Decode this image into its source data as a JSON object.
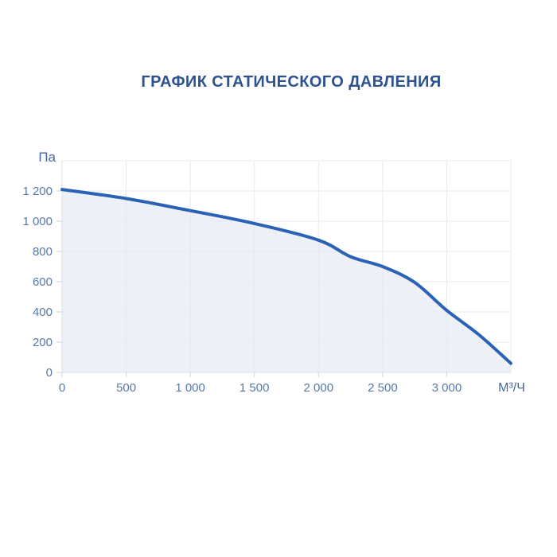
{
  "colors": {
    "background": "#ffffff",
    "title": "#2d5290",
    "tick_label": "#5579a8",
    "unit_label": "#44699b",
    "curve": "#2b62b5",
    "area_fill": "#edf1f7",
    "gridline": "#e6eaf0",
    "axis_line": "#d9dfe7",
    "tick_mark": "#c9d3df"
  },
  "chart_data": {
    "type": "area",
    "title": "ГРАФИК СТАТИЧЕСКОГО ДАВЛЕНИЯ",
    "xlabel": "М³/Ч",
    "ylabel": "Па",
    "xlim": [
      0,
      3500
    ],
    "ylim": [
      0,
      1400
    ],
    "x_tick_step": 500,
    "y_tick_step": 200,
    "grid": true,
    "x_ticks": [
      {
        "value": 0,
        "label": "0"
      },
      {
        "value": 500,
        "label": "500"
      },
      {
        "value": 1000,
        "label": "1 000"
      },
      {
        "value": 1500,
        "label": "1 500"
      },
      {
        "value": 2000,
        "label": "2 000"
      },
      {
        "value": 2500,
        "label": "2 500"
      },
      {
        "value": 3000,
        "label": "3 000"
      }
    ],
    "y_ticks": [
      {
        "value": 0,
        "label": "0"
      },
      {
        "value": 200,
        "label": "200"
      },
      {
        "value": 400,
        "label": "400"
      },
      {
        "value": 600,
        "label": "600"
      },
      {
        "value": 800,
        "label": "800"
      },
      {
        "value": 1000,
        "label": "1 000"
      },
      {
        "value": 1200,
        "label": "1 200"
      }
    ],
    "series": [
      {
        "points": [
          [
            0,
            1210
          ],
          [
            500,
            1150
          ],
          [
            1000,
            1070
          ],
          [
            1500,
            985
          ],
          [
            2000,
            875
          ],
          [
            2250,
            765
          ],
          [
            2500,
            700
          ],
          [
            2750,
            595
          ],
          [
            3000,
            410
          ],
          [
            3250,
            250
          ],
          [
            3500,
            60
          ]
        ]
      }
    ]
  }
}
